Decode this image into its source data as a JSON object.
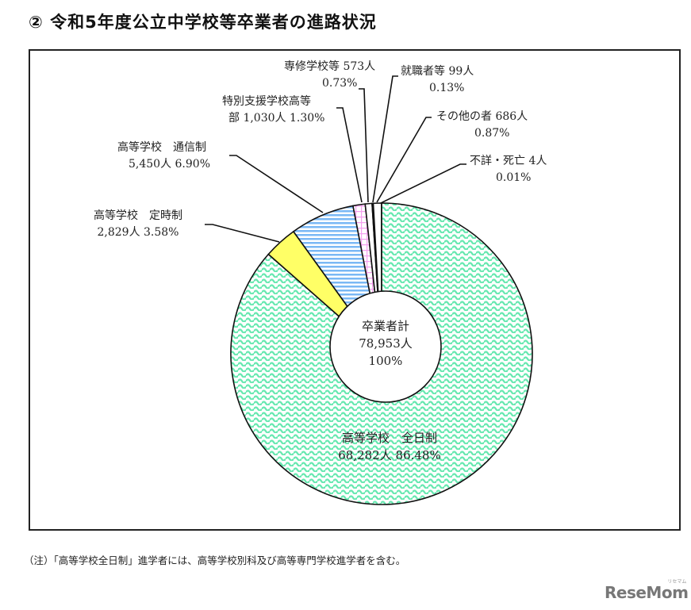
{
  "title": "② 令和5年度公立中学校等卒業者の進路状況",
  "chart_data": {
    "type": "pie",
    "variant": "donut",
    "title": "令和5年度公立中学校等卒業者の進路状況",
    "total": {
      "label": "卒業者計",
      "count": "78,953人",
      "percent": "100%",
      "value": 78953
    },
    "categories": [
      "高等学校 全日制",
      "高等学校 定時制",
      "高等学校 通信制",
      "特別支援学校高等部",
      "専修学校等",
      "就職者等",
      "その他の者",
      "不詳・死亡"
    ],
    "values": [
      68282,
      2829,
      5450,
      1030,
      573,
      99,
      686,
      4
    ],
    "percents": [
      86.48,
      3.58,
      6.9,
      1.3,
      0.73,
      0.13,
      0.87,
      0.01
    ],
    "colors": [
      "#66e8b0",
      "#ffff66",
      "#7ab8f5",
      "#f5a0f0",
      "#ffffff",
      "#111111",
      "#ffffff",
      "#111111"
    ],
    "patterns": [
      "zigzag",
      "solid",
      "horizontal-stripes",
      "grid",
      "solid",
      "solid",
      "solid",
      "solid"
    ],
    "start_angle": "12 o'clock",
    "direction": "clockwise"
  },
  "labels": {
    "zennichi": {
      "line1": "高等学校　全日制",
      "line2": "68,282人 86.48%"
    },
    "teiji": {
      "line1": "高等学校　定時制",
      "line2": "2,829人 3.58%"
    },
    "tsushin": {
      "line1": "高等学校　通信制",
      "line2": "5,450人 6.90%"
    },
    "tokubetsu": {
      "line1": "特別支援学校高等",
      "line2": "部 1,030人 1.30%"
    },
    "senshu": {
      "line1": "専修学校等 573人",
      "line2": "0.73%"
    },
    "shushoku": {
      "line1": "就職者等 99人",
      "line2": "0.13%"
    },
    "sonota": {
      "line1": "その他の者 686人",
      "line2": "0.87%"
    },
    "fusho": {
      "line1": "不詳・死亡 4人",
      "line2": "0.01%"
    },
    "center": {
      "line1": "卒業者計",
      "line2": "78,953人",
      "line3": "100%"
    }
  },
  "note": "（注）「高等学校全日制」進学者には、高等学校別科及び高等専門学校進学者を含む。",
  "watermark": {
    "text": "ReseMom",
    "sub": "リセマム"
  }
}
